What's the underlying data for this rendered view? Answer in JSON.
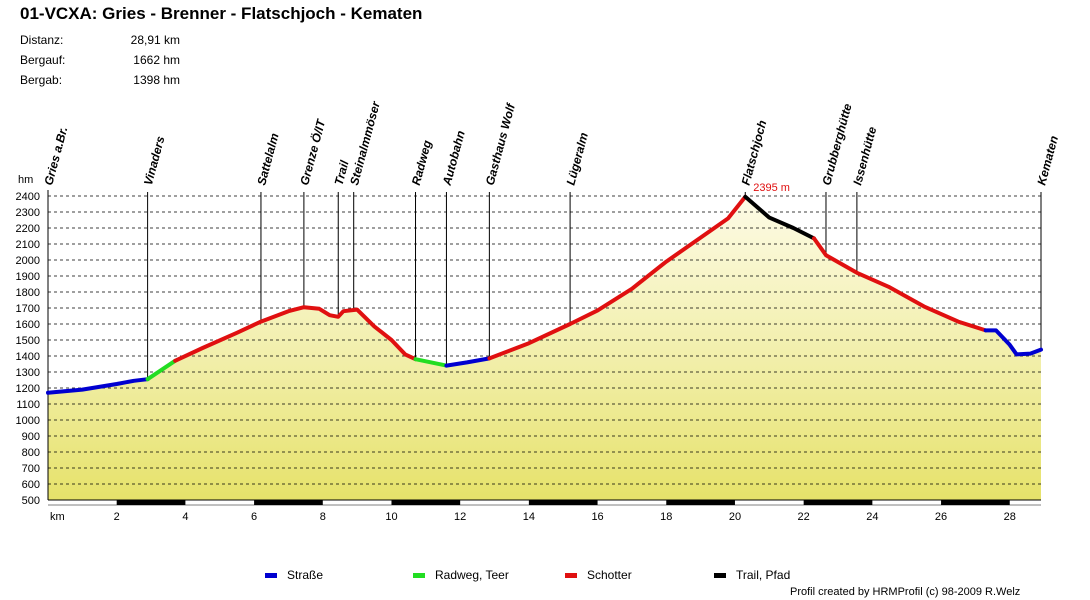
{
  "title": "01-VCXA: Gries - Brenner - Flatschjoch - Kematen",
  "stats": [
    {
      "label": "Distanz:",
      "value": "28,91 km"
    },
    {
      "label": "Bergauf:",
      "value": "1662 hm"
    },
    {
      "label": "Bergab:",
      "value": "1398 hm"
    }
  ],
  "legend": [
    {
      "label": "Straße",
      "color": "#0000d0"
    },
    {
      "label": "Radweg, Teer",
      "color": "#22dd22"
    },
    {
      "label": "Schotter",
      "color": "#e01010"
    },
    {
      "label": "Trail, Pfad",
      "color": "#000000"
    }
  ],
  "credit": "Profil created by HRMProfil (c) 98-2009 R.Welz",
  "chart_data": {
    "type": "area",
    "title": "01-VCXA: Gries - Brenner - Flatschjoch - Kematen",
    "xlabel": "km",
    "ylabel": "hm",
    "xlim": [
      0,
      28.91
    ],
    "ylim": [
      500,
      2400
    ],
    "x_ticks": [
      2,
      4,
      6,
      8,
      10,
      12,
      14,
      16,
      18,
      20,
      22,
      24,
      26,
      28
    ],
    "y_ticks": [
      500,
      600,
      700,
      800,
      900,
      1000,
      1100,
      1200,
      1300,
      1400,
      1500,
      1600,
      1700,
      1800,
      1900,
      2000,
      2100,
      2200,
      2300,
      2400
    ],
    "max_label": "2395 m",
    "max_point": {
      "x": 20.3,
      "y": 2395
    },
    "waypoints": [
      {
        "name": "Gries a.Br.",
        "km": 0.0
      },
      {
        "name": "Vinaders",
        "km": 2.9
      },
      {
        "name": "Sattelalm",
        "km": 6.2
      },
      {
        "name": "Grenze Ö/IT",
        "km": 7.45
      },
      {
        "name": "Trail",
        "km": 8.45
      },
      {
        "name": "Steinalmmöser",
        "km": 8.9
      },
      {
        "name": "Radweg",
        "km": 10.7
      },
      {
        "name": "Autobahn",
        "km": 11.6
      },
      {
        "name": "Gasthaus Wolf",
        "km": 12.85
      },
      {
        "name": "Lügeralm",
        "km": 15.2
      },
      {
        "name": "Flatschjoch",
        "km": 20.3
      },
      {
        "name": "Grubberghütte",
        "km": 22.65
      },
      {
        "name": "Issenhütte",
        "km": 23.55
      },
      {
        "name": "Kematen",
        "km": 28.91
      }
    ],
    "series": [
      {
        "name": "Straße",
        "color": "#0000d0",
        "points": [
          [
            0,
            1170
          ],
          [
            1,
            1190
          ],
          [
            2,
            1225
          ],
          [
            2.5,
            1245
          ],
          [
            2.9,
            1255
          ]
        ]
      },
      {
        "name": "Radweg, Teer",
        "color": "#22dd22",
        "points": [
          [
            2.9,
            1255
          ],
          [
            3.7,
            1370
          ]
        ]
      },
      {
        "name": "Schotter",
        "color": "#e01010",
        "points": [
          [
            3.7,
            1370
          ],
          [
            4.5,
            1450
          ],
          [
            5.5,
            1545
          ],
          [
            6.2,
            1615
          ],
          [
            7.0,
            1680
          ],
          [
            7.45,
            1705
          ],
          [
            7.9,
            1695
          ],
          [
            8.2,
            1655
          ],
          [
            8.45,
            1645
          ],
          [
            8.6,
            1680
          ],
          [
            9.0,
            1690
          ],
          [
            9.5,
            1585
          ],
          [
            10.0,
            1500
          ],
          [
            10.4,
            1410
          ],
          [
            10.7,
            1380
          ]
        ]
      },
      {
        "name": "Radweg, Teer",
        "color": "#22dd22",
        "points": [
          [
            10.7,
            1380
          ],
          [
            11.6,
            1340
          ]
        ]
      },
      {
        "name": "Straße",
        "color": "#0000d0",
        "points": [
          [
            11.6,
            1340
          ],
          [
            12.2,
            1360
          ],
          [
            12.85,
            1385
          ]
        ]
      },
      {
        "name": "Schotter",
        "color": "#e01010",
        "points": [
          [
            12.85,
            1385
          ],
          [
            14.0,
            1480
          ],
          [
            15.2,
            1600
          ],
          [
            16.0,
            1685
          ],
          [
            17.0,
            1820
          ],
          [
            18.0,
            1990
          ],
          [
            19.0,
            2140
          ],
          [
            19.8,
            2260
          ],
          [
            20.3,
            2395
          ]
        ]
      },
      {
        "name": "Trail, Pfad",
        "color": "#000000",
        "points": [
          [
            20.3,
            2395
          ],
          [
            21.0,
            2265
          ],
          [
            21.7,
            2200
          ],
          [
            22.3,
            2135
          ]
        ]
      },
      {
        "name": "Schotter",
        "color": "#e01010",
        "points": [
          [
            22.3,
            2135
          ],
          [
            22.65,
            2030
          ],
          [
            23.55,
            1920
          ],
          [
            24.5,
            1830
          ],
          [
            25.5,
            1710
          ],
          [
            26.5,
            1615
          ],
          [
            27.3,
            1560
          ]
        ]
      },
      {
        "name": "Straße",
        "color": "#0000d0",
        "points": [
          [
            27.3,
            1560
          ],
          [
            27.6,
            1560
          ],
          [
            28.0,
            1470
          ],
          [
            28.2,
            1410
          ],
          [
            28.6,
            1415
          ],
          [
            28.91,
            1440
          ]
        ]
      }
    ]
  }
}
